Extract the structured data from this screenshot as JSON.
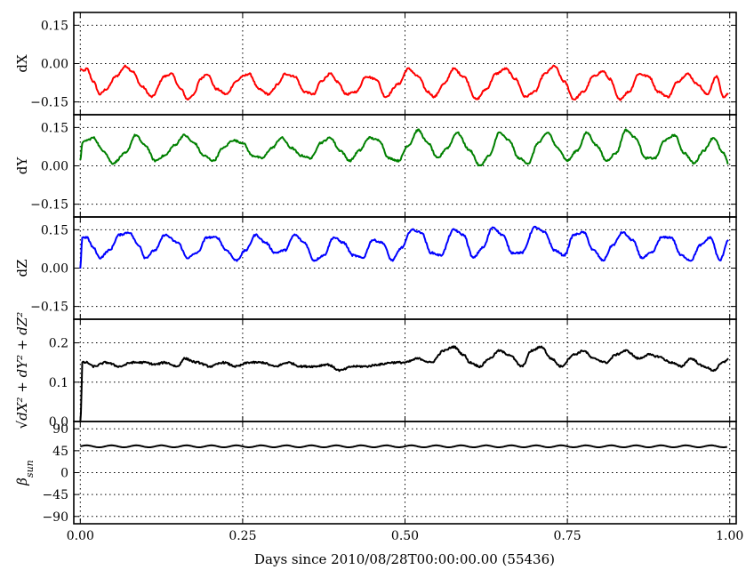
{
  "chart_data": {
    "type": "line",
    "xlabel": "Days since 2010/08/28T00:00:00.00 (55436)",
    "xlim": [
      -0.01,
      1.01
    ],
    "xticks": [
      0.0,
      0.25,
      0.5,
      0.75,
      1.0
    ],
    "xtick_labels": [
      "0.00",
      "0.25",
      "0.50",
      "0.75",
      "1.00"
    ],
    "grid": true,
    "panels": [
      {
        "id": "dX",
        "ylabel": "dX",
        "ylabel_parts": [
          {
            "t": "dX",
            "style": "normal"
          }
        ],
        "color": "#ff0000",
        "ylim": [
          -0.2,
          0.2
        ],
        "yticks": [
          0.15,
          0.0,
          -0.15
        ],
        "ytick_labels": [
          "0.15",
          "0.00",
          "−0.15"
        ],
        "series": {
          "x": [
            0.0,
            0.005,
            0.01,
            0.02,
            0.03,
            0.04,
            0.055,
            0.07,
            0.08,
            0.095,
            0.11,
            0.13,
            0.14,
            0.155,
            0.165,
            0.175,
            0.185,
            0.195,
            0.21,
            0.225,
            0.24,
            0.25,
            0.26,
            0.275,
            0.29,
            0.305,
            0.315,
            0.33,
            0.345,
            0.36,
            0.37,
            0.385,
            0.395,
            0.41,
            0.425,
            0.44,
            0.455,
            0.47,
            0.49,
            0.505,
            0.52,
            0.535,
            0.545,
            0.56,
            0.575,
            0.59,
            0.61,
            0.625,
            0.64,
            0.655,
            0.67,
            0.685,
            0.7,
            0.715,
            0.73,
            0.745,
            0.76,
            0.775,
            0.79,
            0.805,
            0.815,
            0.83,
            0.845,
            0.86,
            0.875,
            0.89,
            0.905,
            0.92,
            0.935,
            0.95,
            0.965,
            0.98,
            0.99,
            0.998
          ],
          "y": [
            -0.02,
            -0.03,
            -0.02,
            -0.07,
            -0.12,
            -0.1,
            -0.05,
            -0.01,
            -0.03,
            -0.09,
            -0.13,
            -0.05,
            -0.04,
            -0.1,
            -0.14,
            -0.12,
            -0.06,
            -0.04,
            -0.1,
            -0.12,
            -0.07,
            -0.05,
            -0.04,
            -0.1,
            -0.12,
            -0.08,
            -0.04,
            -0.05,
            -0.11,
            -0.12,
            -0.07,
            -0.04,
            -0.07,
            -0.12,
            -0.11,
            -0.05,
            -0.06,
            -0.13,
            -0.08,
            -0.02,
            -0.05,
            -0.11,
            -0.13,
            -0.08,
            -0.02,
            -0.05,
            -0.14,
            -0.1,
            -0.04,
            -0.02,
            -0.06,
            -0.13,
            -0.11,
            -0.04,
            -0.01,
            -0.07,
            -0.14,
            -0.11,
            -0.05,
            -0.03,
            -0.06,
            -0.14,
            -0.11,
            -0.04,
            -0.05,
            -0.11,
            -0.13,
            -0.07,
            -0.04,
            -0.08,
            -0.12,
            -0.05,
            -0.13,
            -0.12
          ]
        }
      },
      {
        "id": "dY",
        "ylabel": "dY",
        "ylabel_parts": [
          {
            "t": "dY",
            "style": "normal"
          }
        ],
        "color": "#008000",
        "ylim": [
          -0.2,
          0.2
        ],
        "yticks": [
          0.15,
          0.0,
          -0.15
        ],
        "ytick_labels": [
          "0.15",
          "0.00",
          "−0.15"
        ],
        "series": {
          "x": [
            0.0,
            0.003,
            0.01,
            0.02,
            0.035,
            0.05,
            0.07,
            0.085,
            0.1,
            0.115,
            0.13,
            0.145,
            0.16,
            0.175,
            0.19,
            0.205,
            0.22,
            0.235,
            0.25,
            0.265,
            0.28,
            0.295,
            0.31,
            0.325,
            0.34,
            0.355,
            0.37,
            0.385,
            0.4,
            0.415,
            0.43,
            0.445,
            0.46,
            0.475,
            0.49,
            0.505,
            0.52,
            0.535,
            0.55,
            0.565,
            0.58,
            0.6,
            0.615,
            0.63,
            0.645,
            0.66,
            0.675,
            0.69,
            0.705,
            0.72,
            0.735,
            0.75,
            0.765,
            0.78,
            0.795,
            0.81,
            0.825,
            0.84,
            0.855,
            0.87,
            0.885,
            0.9,
            0.915,
            0.93,
            0.945,
            0.96,
            0.975,
            0.99,
            0.998
          ],
          "y": [
            0.02,
            0.09,
            0.1,
            0.11,
            0.06,
            0.01,
            0.05,
            0.12,
            0.08,
            0.02,
            0.04,
            0.08,
            0.12,
            0.09,
            0.04,
            0.02,
            0.07,
            0.1,
            0.09,
            0.04,
            0.03,
            0.07,
            0.11,
            0.07,
            0.04,
            0.03,
            0.09,
            0.11,
            0.06,
            0.02,
            0.06,
            0.11,
            0.1,
            0.03,
            0.02,
            0.08,
            0.14,
            0.09,
            0.03,
            0.07,
            0.13,
            0.06,
            0.0,
            0.04,
            0.13,
            0.1,
            0.03,
            0.01,
            0.09,
            0.13,
            0.07,
            0.02,
            0.06,
            0.13,
            0.08,
            0.02,
            0.05,
            0.14,
            0.11,
            0.03,
            0.03,
            0.1,
            0.12,
            0.05,
            0.01,
            0.06,
            0.11,
            0.05,
            0.01
          ]
        }
      },
      {
        "id": "dZ",
        "ylabel": "dZ",
        "ylabel_parts": [
          {
            "t": "dZ",
            "style": "normal"
          }
        ],
        "color": "#0000ff",
        "ylim": [
          -0.2,
          0.2
        ],
        "yticks": [
          0.15,
          0.0,
          -0.15
        ],
        "ytick_labels": [
          "0.15",
          "0.00",
          "−0.15"
        ],
        "series": {
          "x": [
            0.0,
            0.003,
            0.01,
            0.02,
            0.03,
            0.045,
            0.06,
            0.075,
            0.09,
            0.1,
            0.115,
            0.13,
            0.15,
            0.165,
            0.18,
            0.195,
            0.21,
            0.225,
            0.24,
            0.255,
            0.27,
            0.285,
            0.3,
            0.315,
            0.33,
            0.345,
            0.36,
            0.375,
            0.39,
            0.405,
            0.42,
            0.435,
            0.45,
            0.465,
            0.48,
            0.495,
            0.51,
            0.525,
            0.54,
            0.555,
            0.575,
            0.59,
            0.605,
            0.62,
            0.635,
            0.65,
            0.665,
            0.68,
            0.7,
            0.715,
            0.73,
            0.745,
            0.76,
            0.775,
            0.79,
            0.805,
            0.82,
            0.835,
            0.85,
            0.865,
            0.88,
            0.895,
            0.91,
            0.925,
            0.94,
            0.955,
            0.97,
            0.985,
            0.998
          ],
          "y": [
            0.0,
            0.12,
            0.12,
            0.08,
            0.04,
            0.07,
            0.13,
            0.14,
            0.09,
            0.04,
            0.07,
            0.13,
            0.1,
            0.04,
            0.06,
            0.12,
            0.12,
            0.07,
            0.03,
            0.07,
            0.13,
            0.1,
            0.06,
            0.07,
            0.13,
            0.1,
            0.03,
            0.05,
            0.12,
            0.1,
            0.05,
            0.04,
            0.11,
            0.1,
            0.03,
            0.08,
            0.15,
            0.14,
            0.06,
            0.05,
            0.15,
            0.13,
            0.04,
            0.08,
            0.16,
            0.13,
            0.06,
            0.06,
            0.16,
            0.14,
            0.07,
            0.05,
            0.13,
            0.14,
            0.07,
            0.03,
            0.09,
            0.14,
            0.11,
            0.04,
            0.06,
            0.12,
            0.12,
            0.05,
            0.03,
            0.09,
            0.12,
            0.03,
            0.11
          ]
        }
      },
      {
        "id": "norm",
        "ylabel": "√(dX²+dY²+dZ²)",
        "ylabel_parts": [
          {
            "t": "√",
            "style": "normal"
          },
          {
            "t": "dX² + dY² + dZ²",
            "style": "italic"
          }
        ],
        "color": "#000000",
        "ylim": [
          0.0,
          0.26
        ],
        "yticks": [
          0.2,
          0.1,
          0.0
        ],
        "ytick_labels": [
          "0.2",
          "0.1",
          "0.0"
        ],
        "series": {
          "x": [
            0.0,
            0.001,
            0.003,
            0.01,
            0.02,
            0.04,
            0.06,
            0.08,
            0.1,
            0.115,
            0.13,
            0.15,
            0.16,
            0.18,
            0.2,
            0.22,
            0.24,
            0.26,
            0.28,
            0.3,
            0.32,
            0.34,
            0.36,
            0.38,
            0.4,
            0.42,
            0.44,
            0.46,
            0.48,
            0.5,
            0.52,
            0.54,
            0.56,
            0.575,
            0.59,
            0.6,
            0.615,
            0.63,
            0.645,
            0.66,
            0.68,
            0.695,
            0.71,
            0.725,
            0.74,
            0.76,
            0.775,
            0.79,
            0.81,
            0.825,
            0.84,
            0.86,
            0.875,
            0.89,
            0.91,
            0.925,
            0.94,
            0.96,
            0.975,
            0.99,
            0.998
          ],
          "y": [
            0.0,
            0.02,
            0.15,
            0.15,
            0.14,
            0.15,
            0.14,
            0.15,
            0.15,
            0.145,
            0.15,
            0.14,
            0.16,
            0.15,
            0.14,
            0.15,
            0.14,
            0.15,
            0.15,
            0.14,
            0.15,
            0.14,
            0.14,
            0.145,
            0.13,
            0.14,
            0.14,
            0.145,
            0.15,
            0.15,
            0.16,
            0.15,
            0.18,
            0.19,
            0.17,
            0.15,
            0.14,
            0.16,
            0.18,
            0.17,
            0.14,
            0.18,
            0.19,
            0.16,
            0.14,
            0.17,
            0.18,
            0.16,
            0.15,
            0.17,
            0.18,
            0.16,
            0.17,
            0.165,
            0.15,
            0.14,
            0.16,
            0.14,
            0.13,
            0.15,
            0.16
          ]
        }
      },
      {
        "id": "beta",
        "ylabel": "β_sun",
        "ylabel_parts": [
          {
            "t": "β",
            "style": "italic"
          },
          {
            "t": "sun",
            "style": "italic-sub"
          }
        ],
        "color": "#000000",
        "ylim": [
          -105,
          105
        ],
        "yticks": [
          90,
          45,
          0,
          -45,
          -90
        ],
        "ytick_labels": [
          "90",
          "45",
          "0",
          "−45",
          "−90"
        ],
        "series": {
          "function": "sine",
          "mean": 54,
          "amplitude": 2,
          "cycles": 26
        }
      }
    ]
  }
}
